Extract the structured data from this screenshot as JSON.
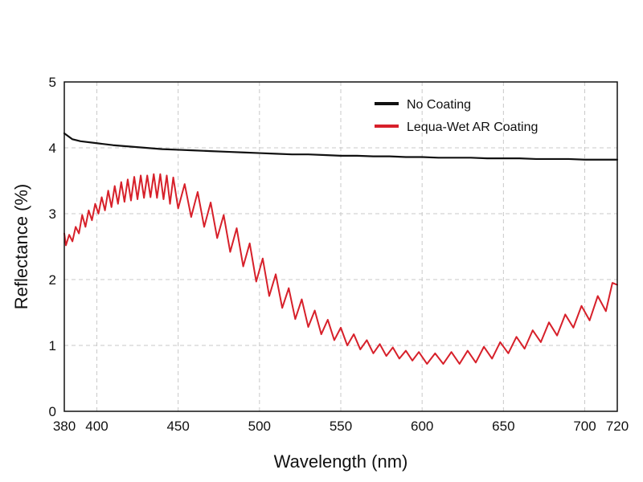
{
  "chart_data": {
    "type": "line",
    "title": "",
    "xlabel": "Wavelength (nm)",
    "ylabel": "Reflectance (%)",
    "xlim": [
      380,
      720
    ],
    "ylim": [
      0,
      5
    ],
    "x_ticks": [
      380,
      400,
      450,
      500,
      550,
      600,
      650,
      700,
      720
    ],
    "y_ticks": [
      0,
      1,
      2,
      3,
      4,
      5
    ],
    "x_gridlines": [
      400,
      450,
      500,
      550,
      600,
      650,
      700
    ],
    "y_gridlines": [
      1,
      2,
      3,
      4
    ],
    "grid": true,
    "legend_position": "top-right",
    "series": [
      {
        "name": "No Coating",
        "color": "#111111",
        "points": [
          [
            380,
            4.22
          ],
          [
            385,
            4.13
          ],
          [
            390,
            4.1
          ],
          [
            400,
            4.07
          ],
          [
            410,
            4.04
          ],
          [
            420,
            4.02
          ],
          [
            430,
            4.0
          ],
          [
            440,
            3.98
          ],
          [
            450,
            3.97
          ],
          [
            460,
            3.96
          ],
          [
            470,
            3.95
          ],
          [
            480,
            3.94
          ],
          [
            490,
            3.93
          ],
          [
            500,
            3.92
          ],
          [
            510,
            3.91
          ],
          [
            520,
            3.9
          ],
          [
            530,
            3.9
          ],
          [
            540,
            3.89
          ],
          [
            550,
            3.88
          ],
          [
            560,
            3.88
          ],
          [
            570,
            3.87
          ],
          [
            580,
            3.87
          ],
          [
            590,
            3.86
          ],
          [
            600,
            3.86
          ],
          [
            610,
            3.85
          ],
          [
            620,
            3.85
          ],
          [
            630,
            3.85
          ],
          [
            640,
            3.84
          ],
          [
            650,
            3.84
          ],
          [
            660,
            3.84
          ],
          [
            670,
            3.83
          ],
          [
            680,
            3.83
          ],
          [
            690,
            3.83
          ],
          [
            700,
            3.82
          ],
          [
            710,
            3.82
          ],
          [
            720,
            3.82
          ]
        ]
      },
      {
        "name": "Lequa-Wet AR Coating",
        "color": "#d7202a",
        "points": [
          [
            380,
            2.7
          ],
          [
            381,
            2.52
          ],
          [
            383,
            2.68
          ],
          [
            385,
            2.58
          ],
          [
            387,
            2.8
          ],
          [
            389,
            2.7
          ],
          [
            391,
            2.98
          ],
          [
            393,
            2.8
          ],
          [
            395,
            3.05
          ],
          [
            397,
            2.9
          ],
          [
            399,
            3.15
          ],
          [
            401,
            3.0
          ],
          [
            403,
            3.25
          ],
          [
            405,
            3.05
          ],
          [
            407,
            3.35
          ],
          [
            409,
            3.1
          ],
          [
            411,
            3.42
          ],
          [
            413,
            3.15
          ],
          [
            415,
            3.48
          ],
          [
            417,
            3.18
          ],
          [
            419,
            3.52
          ],
          [
            421,
            3.2
          ],
          [
            423,
            3.56
          ],
          [
            425,
            3.22
          ],
          [
            427,
            3.58
          ],
          [
            429,
            3.24
          ],
          [
            431,
            3.58
          ],
          [
            433,
            3.25
          ],
          [
            435,
            3.6
          ],
          [
            437,
            3.24
          ],
          [
            439,
            3.6
          ],
          [
            441,
            3.22
          ],
          [
            443,
            3.58
          ],
          [
            445,
            3.15
          ],
          [
            447,
            3.55
          ],
          [
            450,
            3.08
          ],
          [
            454,
            3.45
          ],
          [
            458,
            2.95
          ],
          [
            462,
            3.33
          ],
          [
            466,
            2.8
          ],
          [
            470,
            3.17
          ],
          [
            474,
            2.63
          ],
          [
            478,
            2.98
          ],
          [
            482,
            2.42
          ],
          [
            486,
            2.78
          ],
          [
            490,
            2.2
          ],
          [
            494,
            2.55
          ],
          [
            498,
            1.97
          ],
          [
            502,
            2.32
          ],
          [
            506,
            1.75
          ],
          [
            510,
            2.08
          ],
          [
            514,
            1.57
          ],
          [
            518,
            1.87
          ],
          [
            522,
            1.4
          ],
          [
            526,
            1.7
          ],
          [
            530,
            1.28
          ],
          [
            534,
            1.53
          ],
          [
            538,
            1.17
          ],
          [
            542,
            1.39
          ],
          [
            546,
            1.08
          ],
          [
            550,
            1.27
          ],
          [
            554,
            1.0
          ],
          [
            558,
            1.17
          ],
          [
            562,
            0.94
          ],
          [
            566,
            1.08
          ],
          [
            570,
            0.88
          ],
          [
            574,
            1.02
          ],
          [
            578,
            0.84
          ],
          [
            582,
            0.97
          ],
          [
            586,
            0.8
          ],
          [
            590,
            0.92
          ],
          [
            594,
            0.77
          ],
          [
            598,
            0.9
          ],
          [
            603,
            0.72
          ],
          [
            608,
            0.88
          ],
          [
            613,
            0.72
          ],
          [
            618,
            0.9
          ],
          [
            623,
            0.72
          ],
          [
            628,
            0.92
          ],
          [
            633,
            0.74
          ],
          [
            638,
            0.98
          ],
          [
            643,
            0.8
          ],
          [
            648,
            1.05
          ],
          [
            653,
            0.88
          ],
          [
            658,
            1.13
          ],
          [
            663,
            0.95
          ],
          [
            668,
            1.23
          ],
          [
            673,
            1.05
          ],
          [
            678,
            1.35
          ],
          [
            683,
            1.15
          ],
          [
            688,
            1.47
          ],
          [
            693,
            1.27
          ],
          [
            698,
            1.6
          ],
          [
            703,
            1.38
          ],
          [
            708,
            1.75
          ],
          [
            713,
            1.52
          ],
          [
            717,
            1.95
          ],
          [
            720,
            1.92
          ]
        ]
      }
    ]
  }
}
